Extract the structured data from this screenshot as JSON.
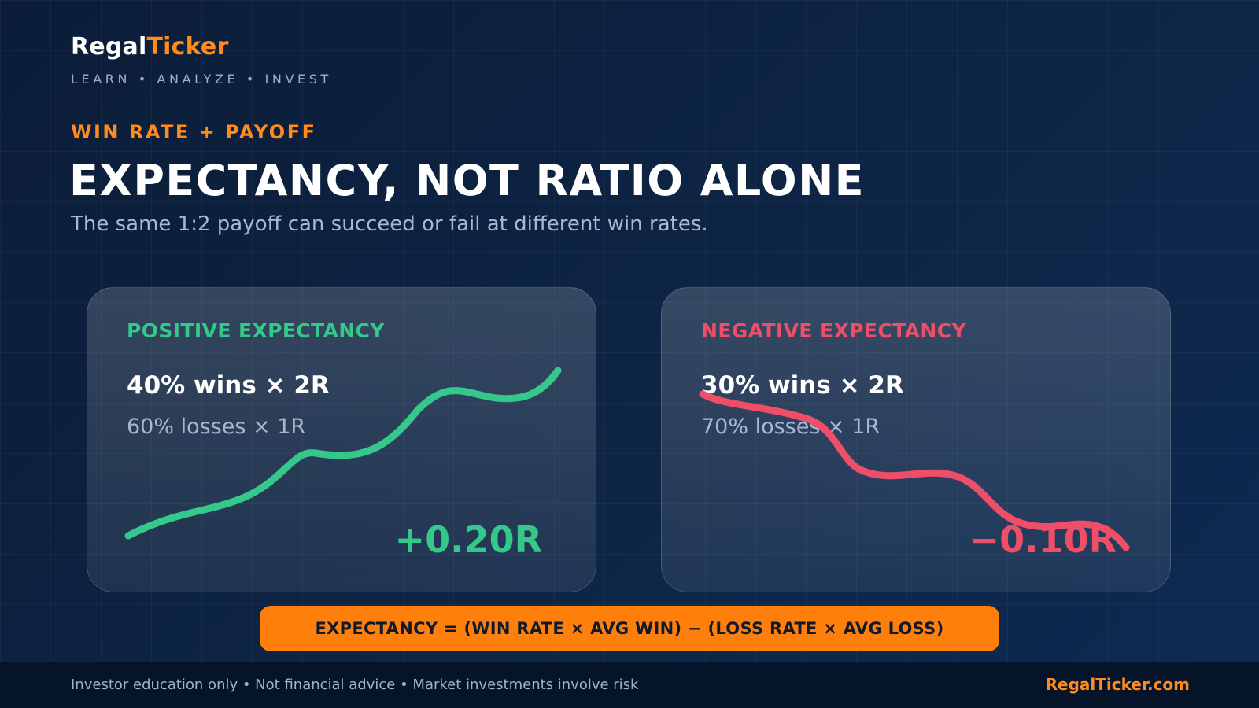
{
  "brand": {
    "part1": "Regal",
    "part2": "Ticker",
    "tagline": "LEARN • ANALYZE • INVEST"
  },
  "header": {
    "eyebrow": "WIN RATE + PAYOFF",
    "title": "EXPECTANCY, NOT RATIO ALONE",
    "subtitle": "The same 1:2 payoff can succeed or fail at different win rates."
  },
  "cards": [
    {
      "title": "POSITIVE EXPECTANCY",
      "wins": "40% wins × 2R",
      "losses": "60% losses × 1R",
      "result": "+0.20R",
      "trend": "up",
      "color": "#34c88a"
    },
    {
      "title": "NEGATIVE EXPECTANCY",
      "wins": "30% wins × 2R",
      "losses": "70% losses × 1R",
      "result": "−0.10R",
      "trend": "down",
      "color": "#ee4e68"
    }
  ],
  "formula": "EXPECTANCY = (WIN RATE × AVG WIN) − (LOSS RATE × AVG LOSS)",
  "footer": {
    "disclaimer": "Investor education only • Not financial advice • Market investments involve risk",
    "site": "RegalTicker.com"
  },
  "colors": {
    "accent": "#ff8a1e",
    "positive": "#34c88a",
    "negative": "#ee4e68",
    "background": "#0e2545"
  }
}
